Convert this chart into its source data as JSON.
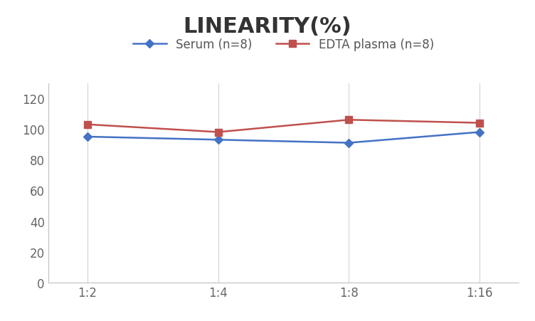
{
  "title": "LINEARITY(%)",
  "x_labels": [
    "1:2",
    "1:4",
    "1:8",
    "1:16"
  ],
  "x_positions": [
    0,
    1,
    2,
    3
  ],
  "serum_values": [
    95,
    93,
    91,
    98
  ],
  "edta_values": [
    103,
    98,
    106,
    104
  ],
  "serum_label": "Serum (n=8)",
  "edta_label": "EDTA plasma (n=8)",
  "serum_color": "#4472C4",
  "edta_color": "#C0504D",
  "ylim": [
    0,
    130
  ],
  "yticks": [
    0,
    20,
    40,
    60,
    80,
    100,
    120
  ],
  "title_fontsize": 22,
  "legend_fontsize": 12,
  "tick_fontsize": 12,
  "background_color": "#ffffff",
  "grid_color": "#d3d3d3"
}
